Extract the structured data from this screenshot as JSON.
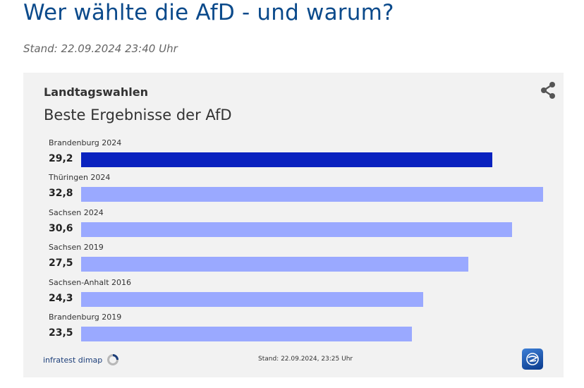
{
  "page": {
    "title": "Wer wählte die AfD - und warum?",
    "stand": "Stand: 22.09.2024 23:40 Uhr"
  },
  "card": {
    "kicker": "Landtagswahlen",
    "title": "Beste Ergebnisse der AfD",
    "source": "infratest dimap",
    "stand": "Stand:  22.09.2024, 23:25 Uhr",
    "share_icon": "share-icon",
    "brand_icon": "tagesschau-logo-icon"
  },
  "colors": {
    "highlight": "#0a22bf",
    "bar": "#9aa9ff",
    "background": "#f2f2f2",
    "title": "#0b4a8b"
  },
  "chart_data": {
    "type": "bar",
    "orientation": "horizontal",
    "title": "Beste Ergebnisse der AfD",
    "categories": [
      "Brandenburg 2024",
      "Thüringen 2024",
      "Sachsen 2024",
      "Sachsen 2019",
      "Sachsen-Anhalt 2016",
      "Brandenburg 2019"
    ],
    "values": [
      29.2,
      32.8,
      30.6,
      27.5,
      24.3,
      23.5
    ],
    "value_labels": [
      "29,2",
      "32,8",
      "30,6",
      "27,5",
      "24,3",
      "23,5"
    ],
    "highlighted_index": 0,
    "xlim": [
      0,
      32.8
    ],
    "grid": false,
    "legend": "none"
  }
}
